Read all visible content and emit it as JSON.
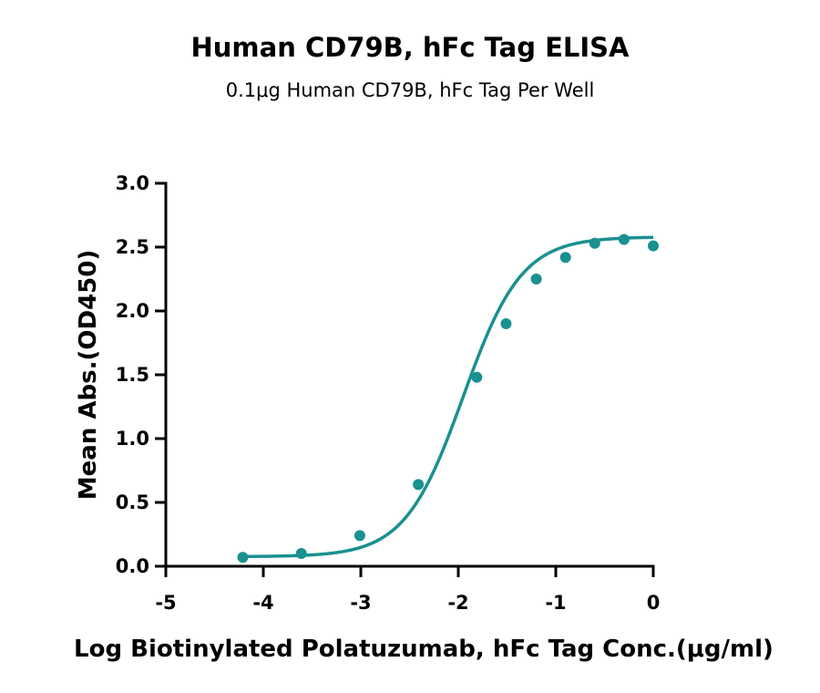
{
  "chart_data": {
    "type": "scatter",
    "title": "Human CD79B, hFc Tag ELISA",
    "subtitle": "0.1μg Human CD79B, hFc Tag Per Well",
    "xlabel": "Log Biotinylated Polatuzumab, hFc Tag Conc.(μg/ml)",
    "ylabel": "Mean Abs.(OD450)",
    "xlim": [
      -5,
      0
    ],
    "ylim": [
      0,
      3.0
    ],
    "x_ticks": [
      -5,
      -4,
      -3,
      -2,
      -1,
      0
    ],
    "x_tick_labels": [
      "-5",
      "-4",
      "-3",
      "-2",
      "-1",
      "0"
    ],
    "y_ticks": [
      0,
      0.5,
      1.0,
      1.5,
      2.0,
      2.5,
      3.0
    ],
    "y_tick_labels": [
      "0.0",
      "0.5",
      "1.0",
      "1.5",
      "2.0",
      "2.5",
      "3.0"
    ],
    "grid": false,
    "legend": "none",
    "color": "#1a9090",
    "series": [
      {
        "x": [
          -4.21,
          -3.61,
          -3.01,
          -2.41,
          -1.81,
          -1.51,
          -1.2,
          -0.9,
          -0.6,
          -0.3,
          0
        ],
        "y": [
          0.07,
          0.1,
          0.24,
          0.64,
          1.48,
          1.9,
          2.25,
          2.42,
          2.53,
          2.56,
          2.51
        ]
      }
    ],
    "fit": {
      "model": "4PL",
      "bottom": 0.075,
      "top": 2.58,
      "logEC50": -1.95,
      "hill": 1.45
    }
  }
}
